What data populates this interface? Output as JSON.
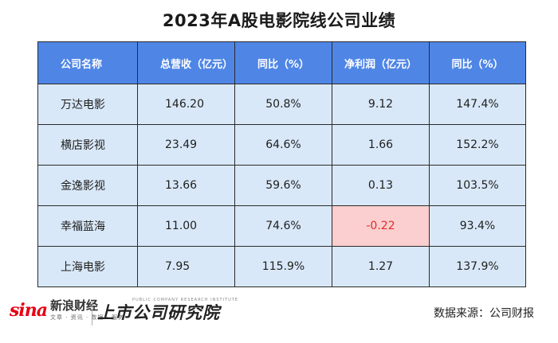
{
  "title": "2023年A股电影院线公司业绩",
  "table": {
    "headers": [
      "公司名称",
      "总营收（亿元）",
      "同比（%）",
      "净利润（亿元）",
      "同比（%）"
    ],
    "rows": [
      [
        "万达电影",
        "146.20",
        "50.8%",
        "9.12",
        "147.4%"
      ],
      [
        "横店影视",
        "23.49",
        "64.6%",
        "1.66",
        "152.2%"
      ],
      [
        "金逸影视",
        "13.66",
        "59.6%",
        "0.13",
        "103.5%"
      ],
      [
        "幸福蓝海",
        "11.00",
        "74.6%",
        "-0.22",
        "93.4%"
      ],
      [
        "上海电影",
        "7.95",
        "115.9%",
        "1.27",
        "137.9%"
      ]
    ]
  },
  "chart_data": {
    "type": "table",
    "title": "2023年A股电影院线公司业绩",
    "columns": [
      "公司名称",
      "总营收（亿元）",
      "同比（%）",
      "净利润（亿元）",
      "同比（%）"
    ],
    "categories": [
      "万达电影",
      "横店影视",
      "金逸影视",
      "幸福蓝海",
      "上海电影"
    ],
    "series": [
      {
        "name": "总营收（亿元）",
        "values": [
          146.2,
          23.49,
          13.66,
          11.0,
          7.95
        ]
      },
      {
        "name": "同比（%）",
        "values": [
          50.8,
          64.6,
          59.6,
          74.6,
          115.9
        ]
      },
      {
        "name": "净利润（亿元）",
        "values": [
          9.12,
          1.66,
          0.13,
          -0.22,
          1.27
        ]
      },
      {
        "name": "同比（%）",
        "values": [
          147.4,
          152.2,
          103.5,
          93.4,
          137.9
        ]
      }
    ],
    "highlight": {
      "row": 3,
      "column": 3,
      "color": "#fbcfcf",
      "text_color": "#e12b2b"
    }
  },
  "colors": {
    "header_bg": "#4f86e6",
    "cell_bg": "#d9e8f8",
    "negative_bg": "#fbcfcf",
    "negative_text": "#e12b2b",
    "brand_red": "#e60012"
  },
  "footer": {
    "sina_mark": "sina",
    "brand_name": "新浪财经",
    "brand_sub": "文章 · 资讯 · 数据 · 服务",
    "institute_en": "PUBLIC COMPANY RESEARCH INSTITUTE",
    "institute_name": "上市公司研究院",
    "source": "数据来源：公司财报"
  }
}
